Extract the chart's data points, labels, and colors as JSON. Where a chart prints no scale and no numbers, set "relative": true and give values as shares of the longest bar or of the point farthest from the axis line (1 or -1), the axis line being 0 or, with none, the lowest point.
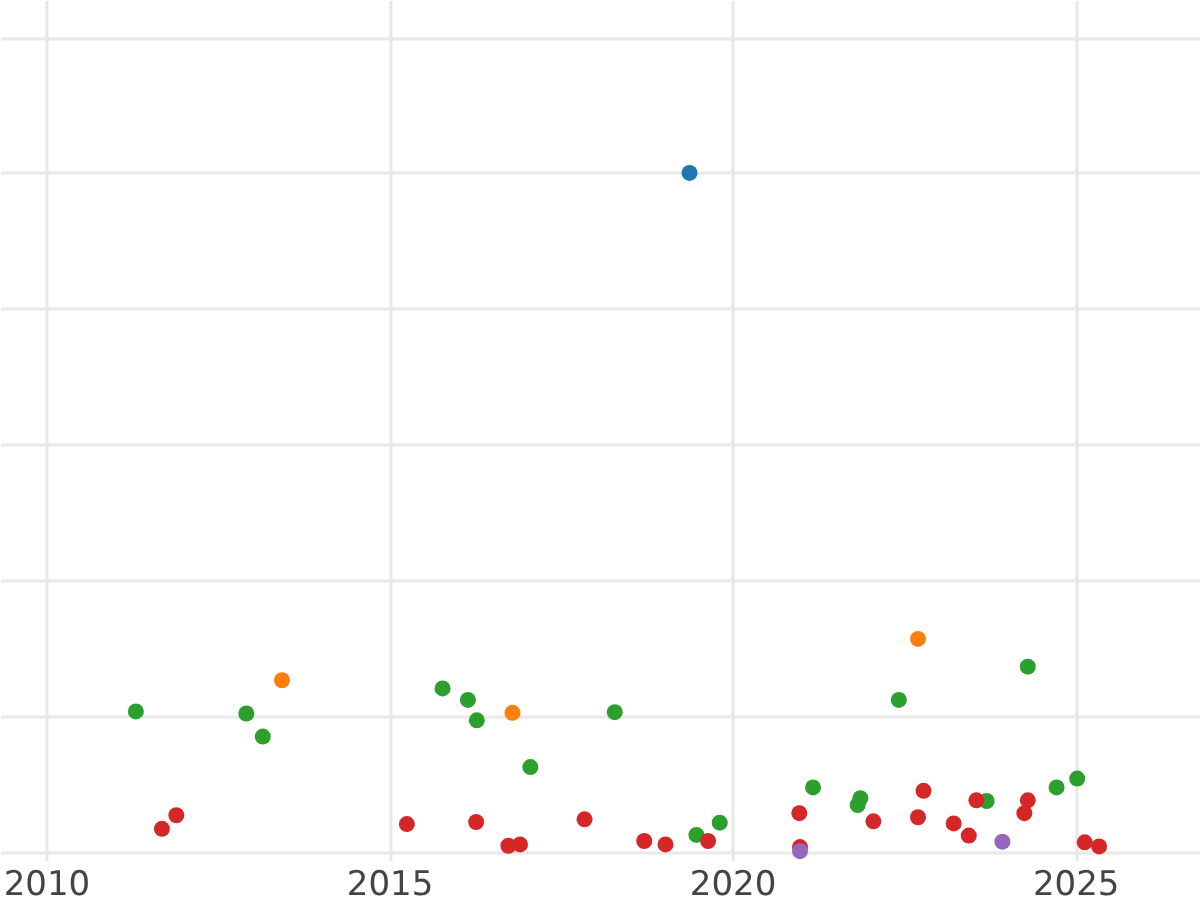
{
  "chart_data": {
    "type": "scatter",
    "relative": true,
    "grid": true,
    "marker": "circle",
    "xlim": [
      2009.33,
      2026.82
    ],
    "xticks": [
      2010,
      2015,
      2020,
      2025
    ],
    "series": [
      {
        "color": "#1f77b4",
        "x": [
          2019.38
        ],
        "values": [
          1
        ]
      },
      {
        "color": "#ff7f0e",
        "x": [
          2013.44,
          2016.8,
          2022.71
        ],
        "values": [
          0.252,
          0.204,
          0.313
        ]
      },
      {
        "color": "#2ca02c",
        "x": [
          2011.31,
          2012.92,
          2013.16,
          2015.78,
          2016.15,
          2016.28,
          2017.06,
          2018.29,
          2022.43,
          2024.31,
          2019.48,
          2019.82,
          2021.18,
          2021.83,
          2021.87,
          2023.71,
          2024.73,
          2025.03
        ],
        "values": [
          0.206,
          0.203,
          0.169,
          0.24,
          0.223,
          0.193,
          0.124,
          0.205,
          0.223,
          0.272,
          0.024,
          0.042,
          0.094,
          0.068,
          0.078,
          0.074,
          0.094,
          0.107
        ]
      },
      {
        "color": "#d62728",
        "x": [
          2011.69,
          2011.9,
          2015.26,
          2016.27,
          2016.74,
          2016.91,
          2017.85,
          2018.72,
          2019.03,
          2019.65,
          2020.98,
          2020.99,
          2022.06,
          2022.71,
          2022.79,
          2023.23,
          2023.45,
          2023.56,
          2024.26,
          2024.31,
          2025.14,
          2025.35
        ],
        "values": [
          0.033,
          0.053,
          0.04,
          0.043,
          0.008,
          0.01,
          0.047,
          0.015,
          0.01,
          0.015,
          0.056,
          0.006,
          0.044,
          0.05,
          0.089,
          0.041,
          0.023,
          0.075,
          0.056,
          0.075,
          0.013,
          0.007
        ]
      },
      {
        "color": "#9467bd",
        "x": [
          2020.99,
          2023.94
        ],
        "values": [
          0,
          0.014
        ]
      }
    ]
  }
}
